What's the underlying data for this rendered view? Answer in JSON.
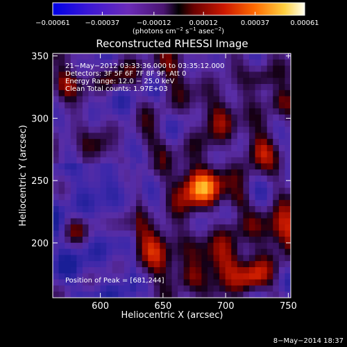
{
  "chart_data": {
    "type": "heatmap",
    "title": "Reconstructed RHESSI Image",
    "xlabel": "Heliocentric X (arcsec)",
    "ylabel": "Heliocentric Y (arcsec)",
    "xlim": [
      562,
      752
    ],
    "ylim": [
      156,
      352
    ],
    "x_ticks": [
      {
        "value": 600,
        "label": "600"
      },
      {
        "value": 650,
        "label": "650"
      },
      {
        "value": 700,
        "label": "700"
      },
      {
        "value": 750,
        "label": "750"
      }
    ],
    "y_ticks": [
      {
        "value": 200,
        "label": "200"
      },
      {
        "value": 250,
        "label": "250"
      },
      {
        "value": 300,
        "label": "300"
      },
      {
        "value": 350,
        "label": "350"
      }
    ],
    "colorbar": {
      "range": [
        -0.00061,
        0.00061
      ],
      "ticks": [
        {
          "value": -0.00061,
          "label": "−0.00061"
        },
        {
          "value": -0.00037,
          "label": "−0.00037"
        },
        {
          "value": -0.00012,
          "label": "−0.00012"
        },
        {
          "value": 0.00012,
          "label": "0.00012"
        },
        {
          "value": 0.00037,
          "label": "0.00037"
        },
        {
          "value": 0.00061,
          "label": "0.00061"
        }
      ],
      "units_prefix": "(photons cm",
      "units_sup1": "−2",
      "units_mid": " s",
      "units_sup2": "−1",
      "units_mid2": " asec",
      "units_sup3": "−2",
      "units_suffix": ")"
    },
    "annotations": [
      "21−May−2012 03:33:36.000 to 03:35:12.000",
      "Detectors: 3F 5F 6F 7F 8F 9F, Att 0",
      "Energy Range: 12.0 − 25.0 keV",
      "Clean     Total counts: 1.97E+03"
    ],
    "peak_text": "Position of Peak = [681,244]",
    "peak_position": [
      681,
      244
    ],
    "grid": false
  },
  "footer": {
    "timestamp": "8−May−2014 18:37"
  }
}
